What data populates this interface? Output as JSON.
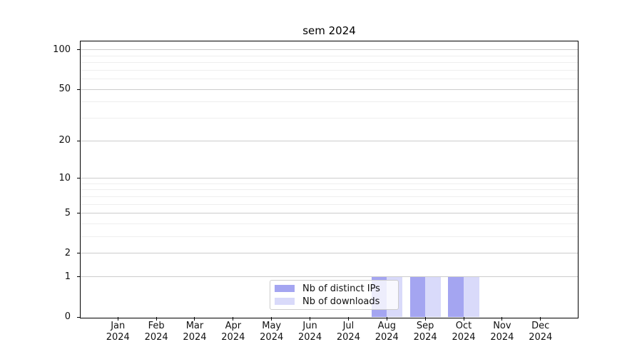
{
  "title": "sem 2024",
  "colors": {
    "major_grid": "#cccccc",
    "minor_grid": "#eeeeee",
    "axis": "#000000",
    "text": "#111111",
    "legend_border": "#cccccc",
    "background": "#ffffff",
    "series_ips": "#a4a5f1",
    "series_downloads": "#d9dafa"
  },
  "chart_data": {
    "type": "bar",
    "title": "sem 2024",
    "categories": [
      "Jan",
      "Feb",
      "Mar",
      "Apr",
      "May",
      "Jun",
      "Jul",
      "Aug",
      "Sep",
      "Oct",
      "Nov",
      "Dec"
    ],
    "year_label": "2024",
    "series": [
      {
        "name": "Nb of distinct IPs",
        "color": "#a4a5f1",
        "values": [
          0,
          0,
          0,
          0,
          0,
          0,
          0,
          1,
          1,
          1,
          0,
          0
        ]
      },
      {
        "name": "Nb of downloads",
        "color": "#d9dafa",
        "values": [
          0,
          0,
          0,
          0,
          0,
          0,
          0,
          1,
          1,
          1,
          0,
          0
        ]
      }
    ],
    "yscale": "log1p",
    "ylim": [
      0,
      116
    ],
    "yticks": [
      0,
      1,
      2,
      5,
      10,
      20,
      50,
      100
    ],
    "yticks_minor": [
      3,
      4,
      6,
      7,
      8,
      9,
      30,
      40,
      60,
      70,
      80,
      90
    ],
    "xlim": [
      -0.97,
      11.97
    ],
    "bar_width": 0.4,
    "grid": true,
    "legend_position": "lower center",
    "legend_entries": [
      "Nb of distinct IPs",
      "Nb of downloads"
    ]
  }
}
